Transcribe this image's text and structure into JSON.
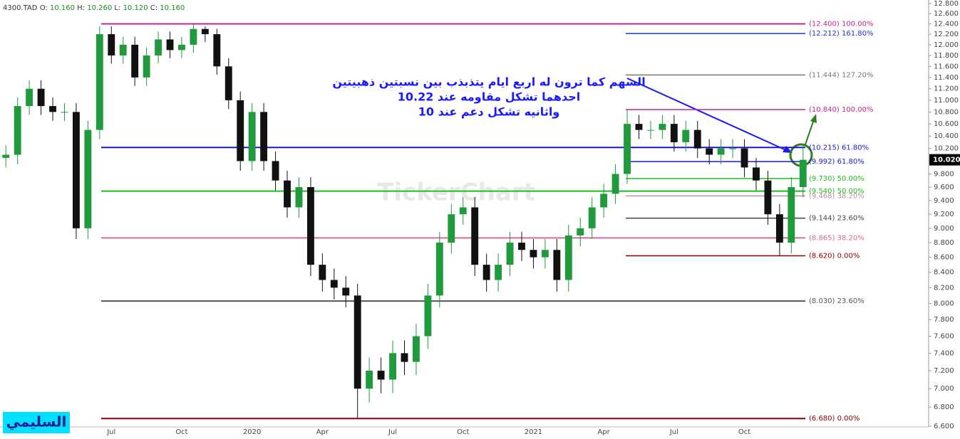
{
  "chart_data": {
    "type": "candlestick",
    "header": {
      "symbol": "4300.TAD",
      "items": [
        {
          "label": "O:",
          "value": "10.160"
        },
        {
          "label": "H:",
          "value": "10.260"
        },
        {
          "label": "L:",
          "value": "10.120"
        },
        {
          "label": "C:",
          "value": "10.160"
        }
      ]
    },
    "log_scale": true,
    "up_color": "#1f9a3c",
    "down_color": "#111111",
    "categories": [
      null,
      null,
      null,
      null,
      null,
      null,
      null,
      null,
      null,
      "Jul",
      null,
      null,
      null,
      null,
      null,
      "Oct",
      null,
      null,
      null,
      null,
      null,
      "2020",
      null,
      null,
      null,
      null,
      null,
      "Apr",
      null,
      null,
      null,
      null,
      null,
      "Jul",
      null,
      null,
      null,
      null,
      null,
      "Oct",
      null,
      null,
      null,
      null,
      null,
      "2021",
      null,
      null,
      null,
      null,
      null,
      "Apr",
      null,
      null,
      null,
      null,
      null,
      "Jul",
      null,
      null,
      null,
      null,
      null,
      "Oct",
      null,
      null,
      null,
      null,
      null
    ],
    "open": [
      10.05,
      10.1,
      10.9,
      11.2,
      10.9,
      10.8,
      10.8,
      9.0,
      10.5,
      12.2,
      11.8,
      12.0,
      11.4,
      11.8,
      12.1,
      11.9,
      12.0,
      12.3,
      12.2,
      11.6,
      11.0,
      10.0,
      10.8,
      10.0,
      9.7,
      9.3,
      9.6,
      8.5,
      8.3,
      8.2,
      8.1,
      7.0,
      7.2,
      7.1,
      7.4,
      7.3,
      7.6,
      8.1,
      8.8,
      9.2,
      9.3,
      8.5,
      8.3,
      8.5,
      8.8,
      8.7,
      8.6,
      8.7,
      8.3,
      8.9,
      9.0,
      9.3,
      9.5,
      9.8,
      10.6,
      10.5,
      10.5,
      10.6,
      10.3,
      10.5,
      10.2,
      10.1,
      10.2,
      10.2,
      9.9,
      9.7,
      9.2,
      8.8,
      9.6
    ],
    "high": [
      10.25,
      11.05,
      11.35,
      11.35,
      11.05,
      10.95,
      10.95,
      10.65,
      12.35,
      12.35,
      12.15,
      12.15,
      11.95,
      12.25,
      12.25,
      12.15,
      12.4,
      12.35,
      12.3,
      11.75,
      11.15,
      10.95,
      10.95,
      10.15,
      9.85,
      9.75,
      9.75,
      8.65,
      8.45,
      8.35,
      8.25,
      7.35,
      7.35,
      7.55,
      7.55,
      7.75,
      8.25,
      8.95,
      9.35,
      9.45,
      9.45,
      8.65,
      8.65,
      8.95,
      8.95,
      8.85,
      8.85,
      8.85,
      9.05,
      9.15,
      9.45,
      9.65,
      9.95,
      10.84,
      10.75,
      10.65,
      10.75,
      10.75,
      10.65,
      10.65,
      10.35,
      10.35,
      10.35,
      10.35,
      10.05,
      9.85,
      9.35,
      9.75,
      10.26
    ],
    "low": [
      9.9,
      9.95,
      10.75,
      10.75,
      10.65,
      10.65,
      8.85,
      8.85,
      10.35,
      11.65,
      11.65,
      11.25,
      11.25,
      11.65,
      11.75,
      11.75,
      11.85,
      12.05,
      11.45,
      10.85,
      9.85,
      9.85,
      9.85,
      9.55,
      9.15,
      9.15,
      8.35,
      8.15,
      8.05,
      7.95,
      6.68,
      6.85,
      6.95,
      6.95,
      7.15,
      7.15,
      7.45,
      7.95,
      8.65,
      9.05,
      8.35,
      8.15,
      8.15,
      8.35,
      8.55,
      8.45,
      8.45,
      8.15,
      8.15,
      8.75,
      8.85,
      9.15,
      9.35,
      9.65,
      10.35,
      10.35,
      10.35,
      10.15,
      10.15,
      10.05,
      9.95,
      9.95,
      10.05,
      9.75,
      9.55,
      9.05,
      8.62,
      8.65,
      9.45
    ],
    "close": [
      10.1,
      10.9,
      11.2,
      10.9,
      10.8,
      10.8,
      9.0,
      10.5,
      12.2,
      11.8,
      12.0,
      11.4,
      11.8,
      12.1,
      11.9,
      12.0,
      12.3,
      12.2,
      11.6,
      11.0,
      10.0,
      10.8,
      10.0,
      9.7,
      9.3,
      9.6,
      8.5,
      8.3,
      8.2,
      8.1,
      7.0,
      7.2,
      7.1,
      7.4,
      7.3,
      7.6,
      8.1,
      8.8,
      9.2,
      9.3,
      8.5,
      8.3,
      8.5,
      8.8,
      8.7,
      8.6,
      8.7,
      8.3,
      8.9,
      9.0,
      9.3,
      9.5,
      9.8,
      10.6,
      10.5,
      10.5,
      10.6,
      10.3,
      10.5,
      10.2,
      10.1,
      10.2,
      10.2,
      9.9,
      9.7,
      9.2,
      8.8,
      9.6,
      10.02
    ],
    "ylim": [
      6.6,
      12.8
    ],
    "yticks": [
      {
        "value": 6.6,
        "label": "6.600"
      },
      {
        "value": 6.8,
        "label": "6.800"
      },
      {
        "value": 7.0,
        "label": "7.000"
      },
      {
        "value": 7.2,
        "label": "7.200"
      },
      {
        "value": 7.4,
        "label": "7.400"
      },
      {
        "value": 7.6,
        "label": "7.600"
      },
      {
        "value": 7.8,
        "label": "7.800"
      },
      {
        "value": 8.0,
        "label": "8.000"
      },
      {
        "value": 8.2,
        "label": "8.200"
      },
      {
        "value": 8.4,
        "label": "8.400"
      },
      {
        "value": 8.6,
        "label": "8.600"
      },
      {
        "value": 8.8,
        "label": "8.800"
      },
      {
        "value": 9.0,
        "label": "9.000"
      },
      {
        "value": 9.2,
        "label": "9.200"
      },
      {
        "value": 9.4,
        "label": "9.400"
      },
      {
        "value": 9.6,
        "label": "9.600"
      },
      {
        "value": 9.8,
        "label": "9.800"
      },
      {
        "value": 10.0,
        "label": "10.000"
      },
      {
        "value": 10.2,
        "label": "10.200"
      },
      {
        "value": 10.4,
        "label": "10.400"
      },
      {
        "value": 10.6,
        "label": "10.600"
      },
      {
        "value": 10.8,
        "label": "10.800"
      },
      {
        "value": 11.0,
        "label": "11.000"
      },
      {
        "value": 11.2,
        "label": "11.200"
      },
      {
        "value": 11.4,
        "label": "11.400"
      },
      {
        "value": 11.6,
        "label": "11.600"
      },
      {
        "value": 11.8,
        "label": "11.800"
      },
      {
        "value": 12.0,
        "label": "12.000"
      },
      {
        "value": 12.2,
        "label": "12.200"
      },
      {
        "value": 12.4,
        "label": "12.400"
      },
      {
        "value": 12.6,
        "label": "12.600"
      },
      {
        "value": 12.8,
        "label": "12.800"
      }
    ],
    "last_price": {
      "value": 10.02,
      "label": "10.020"
    },
    "fibonacci": [
      [
        {
          "value": 12.4,
          "label": "(12.400) 100.00%",
          "color": "#c2268f"
        },
        {
          "value": 10.215,
          "label": "(10.215) 61.80%",
          "color": "#1a1acc"
        },
        {
          "value": 9.54,
          "label": "(9.540) 50.00%",
          "color": "#22bb22"
        },
        {
          "value": 8.865,
          "label": "(8.865) 38.20%",
          "color": "#d46a9a"
        },
        {
          "value": 8.03,
          "label": "(8.030) 23.60%",
          "color": "#555555"
        },
        {
          "value": 6.68,
          "label": "(6.680) 0.00%",
          "color": "#8b0000"
        }
      ],
      [
        {
          "value": 12.212,
          "label": "(12.212) 161.80%",
          "color": "#2233cc"
        },
        {
          "value": 11.444,
          "label": "(11.444) 127.20%",
          "color": "#777777"
        },
        {
          "value": 10.84,
          "label": "(10.840) 100.00%",
          "color": "#c2268f"
        },
        {
          "value": 9.992,
          "label": "(9.992) 61.80%",
          "color": "#1a1acc"
        },
        {
          "value": 9.73,
          "label": "(9.730) 50.00%",
          "color": "#22bb22"
        },
        {
          "value": 9.468,
          "label": "(9.468) 38.20%",
          "color": "#c48aa8"
        },
        {
          "value": 9.144,
          "label": "(9.144) 23.60%",
          "color": "#444444"
        },
        {
          "value": 8.62,
          "label": "(8.620) 0.00%",
          "color": "#8b0000"
        }
      ]
    ],
    "annotation": [
      "السهم كما ترون له اربع ايام يتذبذب بين نسبتين ذهبيتين",
      "احدهما تشكل مقاومه عند 10.22",
      "واثانيه تشكل دعم عند 10"
    ],
    "watermark": "TickerChart",
    "signature": "السليمي"
  }
}
